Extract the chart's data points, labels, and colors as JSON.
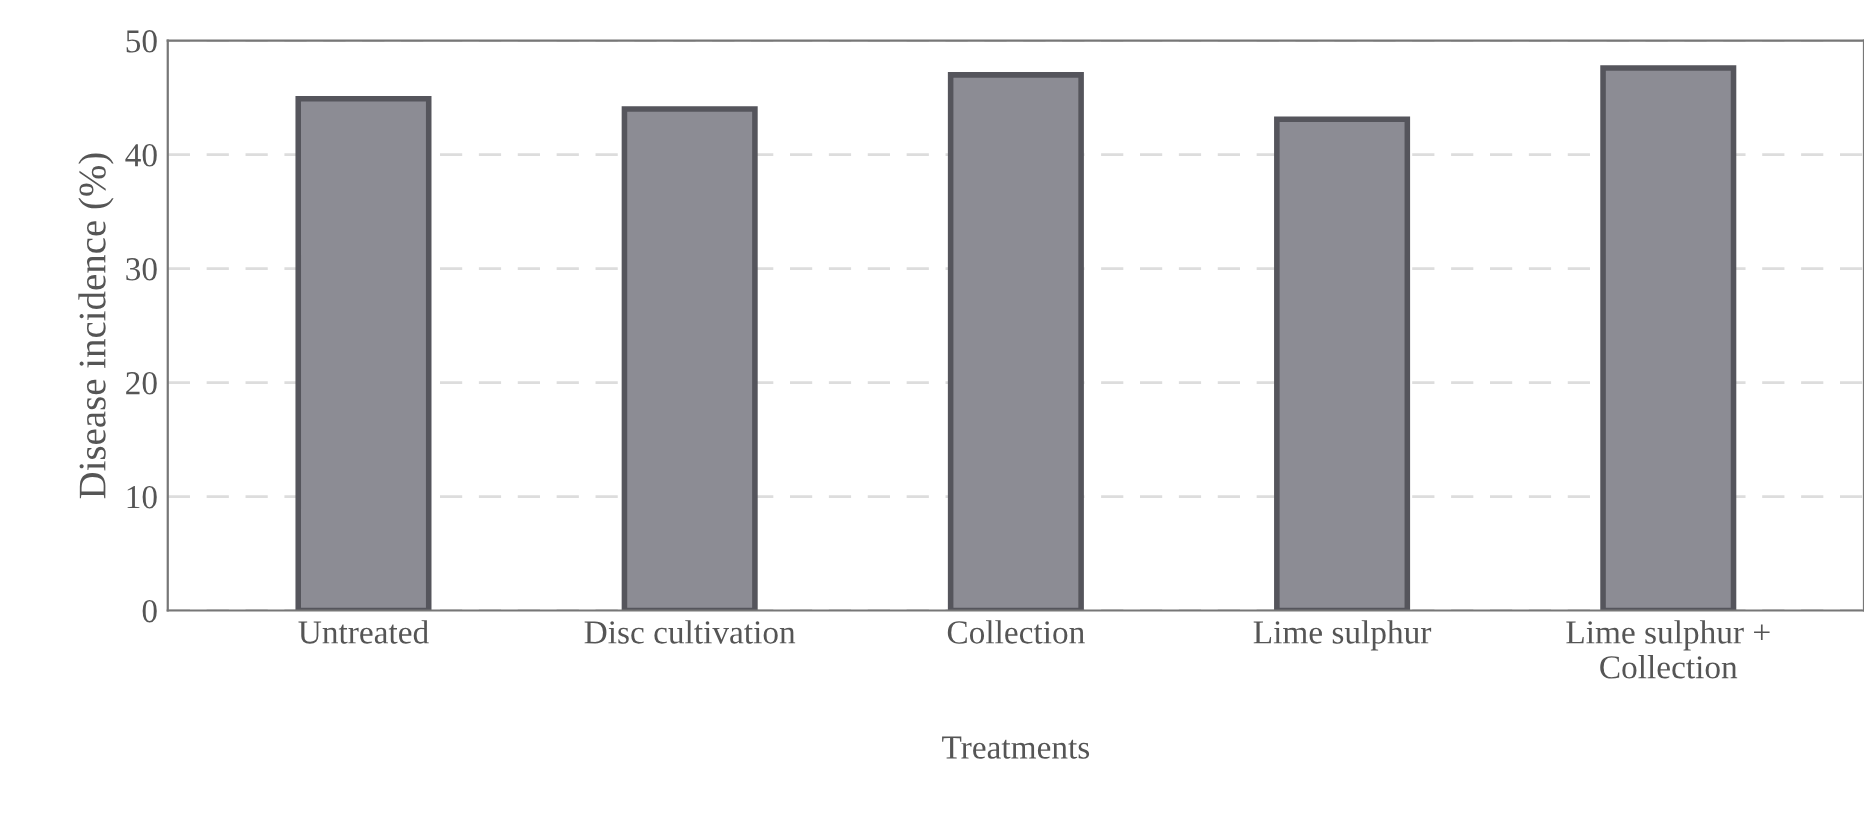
{
  "chart_data": {
    "type": "bar",
    "xlabel": "Treatments",
    "ylabel": "Disease incidence (%)",
    "categories": [
      "Untreated",
      "Disc cultivation",
      "Collection",
      "Lime sulphur",
      "Lime sulphur +\nCollection"
    ],
    "values": [
      44.9,
      44.0,
      47.0,
      43.1,
      47.6
    ],
    "color": "#8c8c94",
    "ylim": [
      0,
      50
    ],
    "yticks": [
      0,
      10,
      20,
      30,
      40,
      50
    ],
    "grid": "y"
  }
}
